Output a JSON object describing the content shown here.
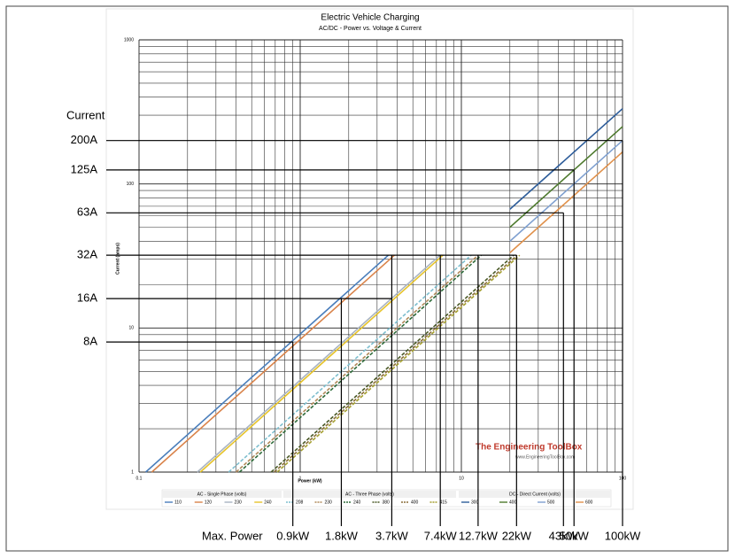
{
  "chart_data": {
    "type": "line",
    "title": "Electric Vehicle Charging",
    "subtitle": "AC/DC - Power vs. Voltage & Current",
    "x_label": "Power (kW)",
    "y_label": "Current (amps)",
    "xlog": true,
    "ylog": true,
    "grid": true,
    "xlim": [
      0.1,
      100
    ],
    "xticks": [
      0.1,
      1,
      10,
      100
    ],
    "ylim": [
      1,
      1000
    ],
    "yticks": [
      1,
      10,
      100,
      1000
    ],
    "series_groups": [
      {
        "title": "AC - Single Phase (volts)",
        "dashed": false,
        "series": [
          {
            "name": "110",
            "color": "#4a7ebb",
            "x": [
              0.11,
              3.52
            ],
            "values": [
              1,
              32
            ]
          },
          {
            "name": "120",
            "color": "#d9834a",
            "x": [
              0.12,
              3.84
            ],
            "values": [
              1,
              32
            ]
          },
          {
            "name": "230",
            "color": "#a9b4c2",
            "x": [
              0.23,
              7.36
            ],
            "values": [
              1,
              32
            ]
          },
          {
            "name": "240",
            "color": "#e6c32a",
            "x": [
              0.24,
              7.68
            ],
            "values": [
              1,
              32
            ]
          }
        ]
      },
      {
        "title": "AC - Three Phase (volts)",
        "dashed": true,
        "series": [
          {
            "name": "208",
            "color": "#7fbfcf",
            "x": [
              0.36,
              11.5
            ],
            "values": [
              1,
              32
            ]
          },
          {
            "name": "230",
            "color": "#b08a5a",
            "x": [
              0.4,
              12.7
            ],
            "values": [
              1,
              32
            ]
          },
          {
            "name": "240",
            "color": "#2f6b3a",
            "x": [
              0.42,
              13.3
            ],
            "values": [
              1,
              32
            ]
          },
          {
            "name": "380",
            "color": "#4b5a28",
            "x": [
              0.66,
              21.1
            ],
            "values": [
              1,
              32
            ]
          },
          {
            "name": "400",
            "color": "#8b6f3a",
            "x": [
              0.69,
              22.2
            ],
            "values": [
              1,
              32
            ]
          },
          {
            "name": "415",
            "color": "#a5a030",
            "x": [
              0.72,
              23
            ],
            "values": [
              1,
              32
            ]
          }
        ]
      },
      {
        "title": "DC - Direct Current (volts)",
        "dashed": false,
        "series": [
          {
            "name": "300",
            "color": "#2e5d9a",
            "x": [
              20,
              100
            ],
            "values": [
              66.7,
              333
            ]
          },
          {
            "name": "400",
            "color": "#4e7a2e",
            "x": [
              20,
              100
            ],
            "values": [
              50,
              250
            ]
          },
          {
            "name": "500",
            "color": "#7fa0d0",
            "x": [
              20,
              100
            ],
            "values": [
              40,
              200
            ]
          },
          {
            "name": "600",
            "color": "#e0904a",
            "x": [
              20,
              100
            ],
            "values": [
              33.3,
              166.7
            ]
          }
        ]
      }
    ],
    "current_heading": "Current",
    "current_markers": [
      {
        "label": "200A",
        "value": 200,
        "to": 100
      },
      {
        "label": "125A",
        "value": 125,
        "to": 50
      },
      {
        "label": "63A",
        "value": 63,
        "to": 43
      },
      {
        "label": "32A",
        "value": 32,
        "to": 22
      },
      {
        "label": "16A",
        "value": 16,
        "to": 3.7
      },
      {
        "label": "8A",
        "value": 8,
        "to": 0.9
      }
    ],
    "power_heading": "Max. Power",
    "power_markers": [
      {
        "label": "0.9kW",
        "value": 0.9,
        "from": 8
      },
      {
        "label": "1.8kW",
        "value": 1.8,
        "from": 16
      },
      {
        "label": "3.7kW",
        "value": 3.7,
        "from": 32
      },
      {
        "label": "7.4kW",
        "value": 7.4,
        "from": 32
      },
      {
        "label": "12.7kW",
        "value": 12.7,
        "from": 32
      },
      {
        "label": "22kW",
        "value": 22,
        "from": 32
      },
      {
        "label": "43kW",
        "value": 43,
        "from": 63
      },
      {
        "label": "50kW",
        "value": 50,
        "from": 125
      },
      {
        "label": "100kW",
        "value": 100,
        "from": 200
      }
    ],
    "watermark": "The Engineering ToolBox",
    "watermark_url": "www.EngineeringToolBox.com"
  }
}
